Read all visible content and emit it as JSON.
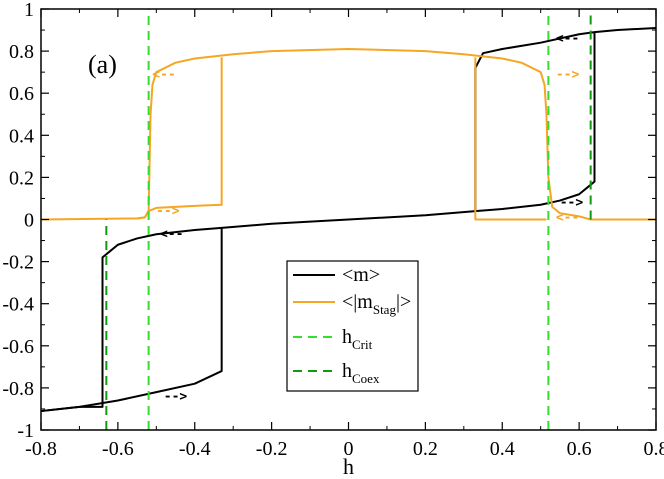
{
  "chart_data": {
    "type": "line",
    "panel_label": "(a)",
    "xlabel": "h",
    "ylabel": "",
    "xlim": [
      -0.8,
      0.8
    ],
    "ylim": [
      -1,
      1
    ],
    "x_ticks": [
      "-0.8",
      "-0.6",
      "-0.4",
      "-0.2",
      "0",
      "0.2",
      "0.4",
      "0.6",
      "0.8"
    ],
    "y_ticks": [
      "-1",
      "-0.8",
      "-0.6",
      "-0.4",
      "-0.2",
      "0",
      "0.2",
      "0.4",
      "0.6",
      "0.8",
      "1"
    ],
    "grid": false,
    "legend_position": "lower-right",
    "colors": {
      "m": "#000000",
      "m_stag": "#f5a623",
      "h_crit": "#33dd33",
      "h_coex": "#119911"
    },
    "series": [
      {
        "name": "<m>",
        "key": "m",
        "style": "solid",
        "x": [
          -0.8,
          -0.7,
          -0.6,
          -0.5,
          -0.4,
          -0.33,
          -0.33,
          -0.2,
          0.0,
          0.2,
          0.33,
          0.33,
          0.35,
          0.4,
          0.5,
          0.6,
          0.64,
          0.64,
          0.7,
          0.8
        ],
        "y": [
          -0.91,
          -0.89,
          -0.86,
          -0.82,
          -0.78,
          -0.72,
          -0.04,
          -0.02,
          0.0,
          0.02,
          0.04,
          0.72,
          0.79,
          0.81,
          0.84,
          0.88,
          0.89,
          0.89,
          0.9,
          0.91
        ]
      },
      {
        "name": "<m>",
        "key": "m",
        "style": "solid",
        "x": [
          -0.8,
          -0.7,
          -0.64,
          -0.64,
          -0.62,
          -0.6,
          -0.55,
          -0.5,
          -0.45,
          -0.4,
          -0.33
        ],
        "y": [
          -0.91,
          -0.89,
          -0.89,
          -0.18,
          -0.15,
          -0.12,
          -0.09,
          -0.07,
          -0.06,
          -0.05,
          -0.04
        ]
      },
      {
        "name": "<m>",
        "key": "m",
        "style": "solid",
        "x": [
          0.33,
          0.4,
          0.45,
          0.5,
          0.55,
          0.6,
          0.62,
          0.64,
          0.64
        ],
        "y": [
          0.04,
          0.05,
          0.06,
          0.07,
          0.09,
          0.12,
          0.15,
          0.18,
          0.89
        ]
      },
      {
        "name": "<|m_Stag|>",
        "key": "m_stag",
        "style": "solid",
        "x": [
          -0.8,
          -0.55,
          -0.53,
          -0.52,
          -0.515,
          -0.51,
          -0.5,
          -0.45,
          -0.4,
          -0.3,
          -0.2,
          0.0,
          0.2,
          0.3,
          0.4,
          0.45,
          0.5,
          0.51,
          0.515,
          0.52,
          0.53,
          0.55,
          0.6,
          0.63,
          0.8
        ],
        "y": [
          0.0,
          0.005,
          0.01,
          0.04,
          0.5,
          0.64,
          0.7,
          0.745,
          0.765,
          0.785,
          0.8,
          0.81,
          0.8,
          0.785,
          0.765,
          0.745,
          0.7,
          0.64,
          0.5,
          0.2,
          0.06,
          0.03,
          0.015,
          0.0,
          0.0
        ]
      },
      {
        "name": "<|m_Stag|>",
        "key": "m_stag",
        "style": "solid",
        "x": [
          -0.55,
          -0.53,
          -0.52,
          -0.5,
          -0.4,
          -0.33,
          -0.33
        ],
        "y": [
          0.005,
          0.01,
          0.04,
          0.055,
          0.065,
          0.07,
          0.77
        ]
      },
      {
        "name": "<|m_Stag|>",
        "key": "m_stag",
        "style": "solid",
        "x": [
          0.33,
          0.33,
          0.4,
          0.5,
          0.515
        ],
        "y": [
          0.77,
          0.0,
          0.0,
          0.0,
          0.0
        ]
      },
      {
        "name": "h_Crit",
        "key": "h_crit",
        "style": "dashed",
        "x": [
          -0.52,
          -0.52
        ],
        "y": [
          -1,
          1
        ]
      },
      {
        "name": "h_Crit",
        "key": "h_crit",
        "style": "dashed",
        "x": [
          0.52,
          0.52
        ],
        "y": [
          -1,
          1
        ]
      },
      {
        "name": "h_Coex",
        "key": "h_coex",
        "style": "dashed",
        "x": [
          -0.63,
          -0.63
        ],
        "y": [
          -1,
          0
        ]
      },
      {
        "name": "h_Coex",
        "key": "h_coex",
        "style": "dashed",
        "x": [
          0.63,
          0.63
        ],
        "y": [
          0,
          1
        ]
      }
    ],
    "legend": [
      {
        "main": "<m>",
        "sub": "",
        "tail": "",
        "key": "m",
        "style": "solid"
      },
      {
        "main": "<|m",
        "sub": "Stag",
        "tail": "|>",
        "key": "m_stag",
        "style": "solid"
      },
      {
        "main": "h",
        "sub": "Crit",
        "tail": "",
        "key": "h_crit",
        "style": "dashed"
      },
      {
        "main": "h",
        "sub": "Coex",
        "tail": "",
        "key": "h_coex",
        "style": "dashed"
      }
    ],
    "annotations": [
      {
        "text": "<--",
        "x": 0.57,
        "y": 0.86,
        "key": "m"
      },
      {
        "text": "-->",
        "x": 0.58,
        "y": 0.08,
        "key": "m"
      },
      {
        "text": "<--",
        "x": -0.46,
        "y": -0.07,
        "key": "m"
      },
      {
        "text": "-->",
        "x": -0.45,
        "y": -0.84,
        "key": "m"
      },
      {
        "text": "<--",
        "x": -0.48,
        "y": 0.69,
        "key": "m_stag"
      },
      {
        "text": "-->",
        "x": 0.57,
        "y": 0.69,
        "key": "m_stag"
      },
      {
        "text": "-->",
        "x": -0.47,
        "y": 0.04,
        "key": "m_stag"
      },
      {
        "text": "<--",
        "x": 0.57,
        "y": 0.01,
        "key": "m_stag"
      }
    ]
  }
}
